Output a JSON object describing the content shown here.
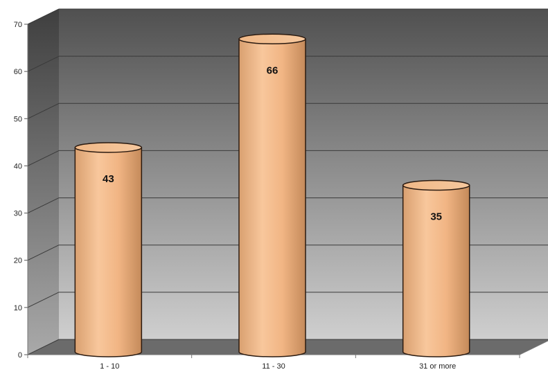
{
  "chart_data": {
    "type": "bar",
    "style": "3d-cylinder",
    "categories": [
      "1 - 10",
      "11 - 30",
      "31 or more"
    ],
    "values": [
      43,
      66,
      35
    ],
    "data_labels": [
      "43",
      "66",
      "35"
    ],
    "ylim": [
      0,
      70
    ],
    "y_ticks": [
      0,
      10,
      20,
      30,
      40,
      50,
      60,
      70
    ],
    "y_tick_labels": [
      "0",
      "10",
      "20",
      "30",
      "40",
      "50",
      "60",
      "70"
    ],
    "grid": true,
    "legend": "none",
    "colors": {
      "bar_fill": "#f2b98a",
      "bar_shade": "#c98f60",
      "bar_outline": "#2a1a10",
      "wall_top": "#555555",
      "wall_bottom": "#c8c8c8",
      "floor": "#6b6b6b"
    }
  }
}
